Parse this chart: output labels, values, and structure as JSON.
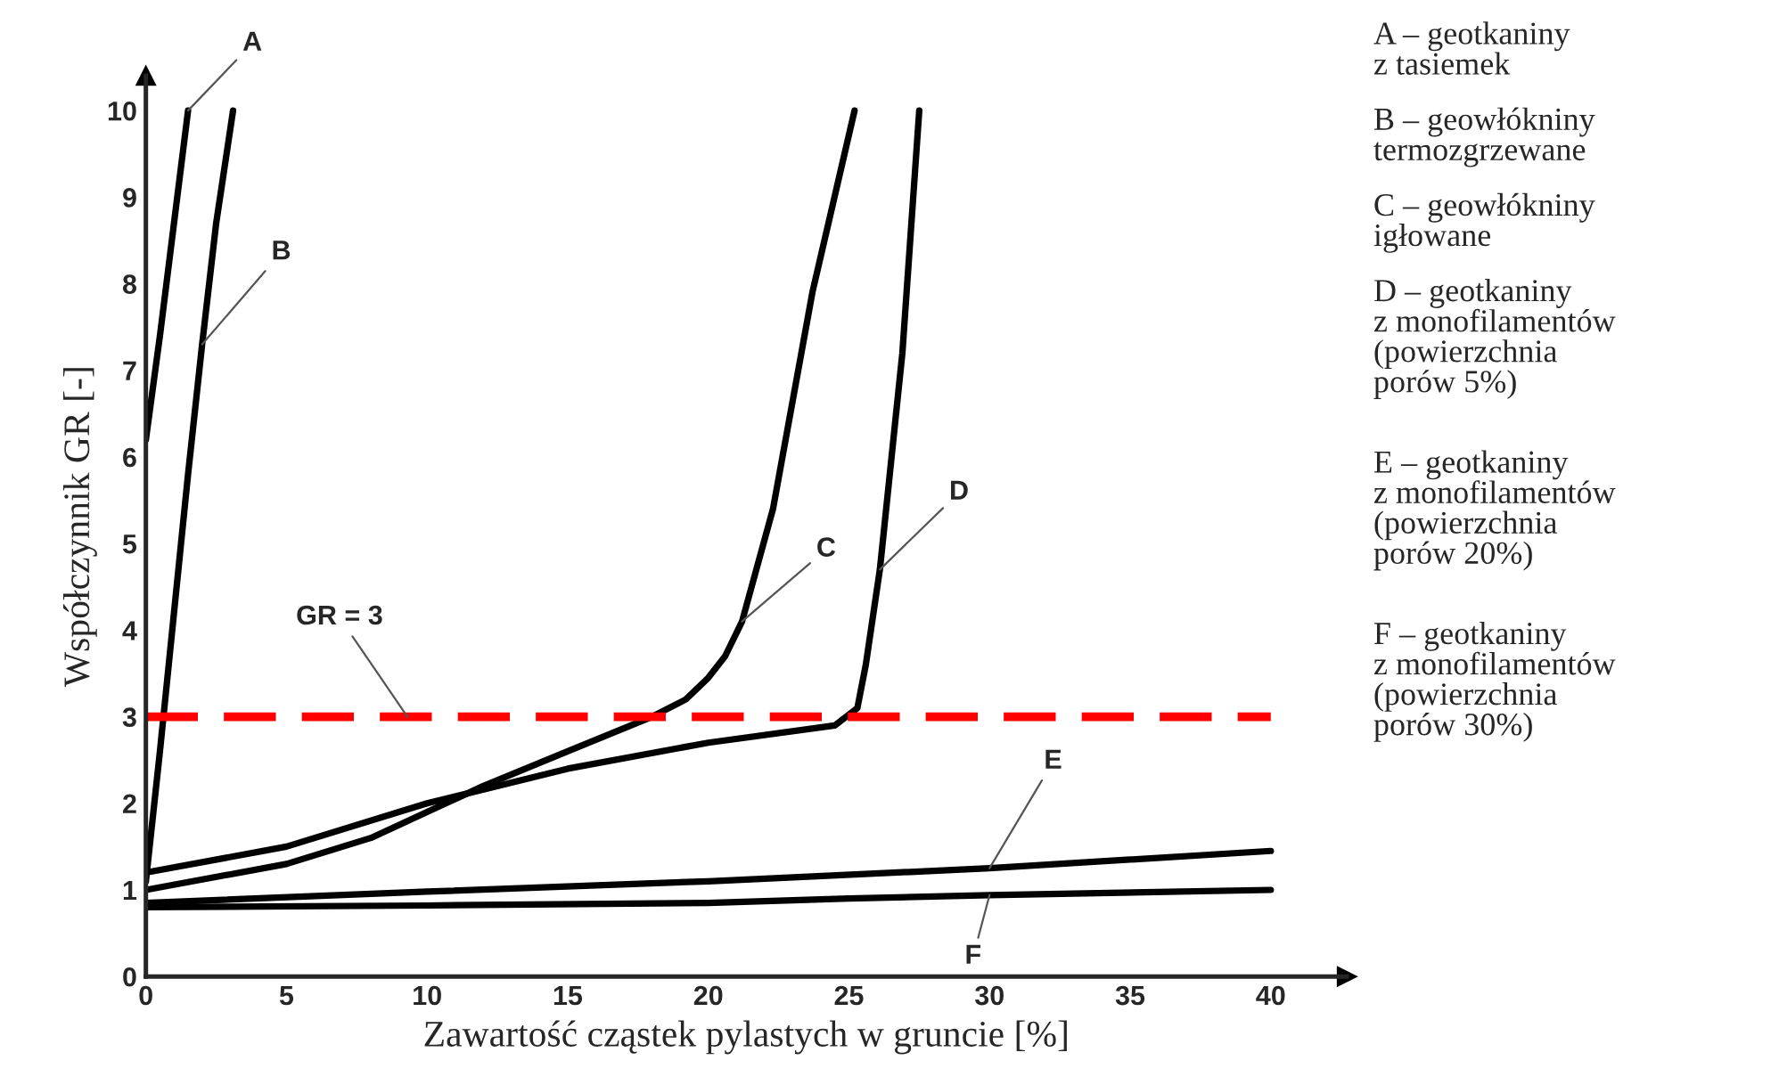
{
  "chart_data": {
    "type": "line",
    "xlabel": "Zawartość cząstek pylastych w gruncie [%]",
    "ylabel": "Współczynnik GR [-]",
    "xlim": [
      0,
      42.7
    ],
    "ylim": [
      0,
      10.4
    ],
    "xticks": [
      0,
      5,
      10,
      15,
      20,
      25,
      30,
      35,
      40
    ],
    "yticks": [
      0,
      1,
      2,
      3,
      4,
      5,
      6,
      7,
      8,
      9,
      10
    ],
    "grid": false,
    "legend": false,
    "marker": "none",
    "line_style": "solid",
    "series": [
      {
        "name": "A",
        "color": "#000000",
        "x": [
          0,
          0.5,
          1.0,
          1.5
        ],
        "values": [
          6.2,
          7.4,
          8.7,
          10
        ]
      },
      {
        "name": "B",
        "color": "#000000",
        "x": [
          0,
          0.5,
          1.0,
          1.5,
          2.0,
          2.5,
          3.1
        ],
        "values": [
          1.1,
          2.6,
          4.2,
          5.8,
          7.3,
          8.7,
          10
        ]
      },
      {
        "name": "C",
        "color": "#000000",
        "x": [
          0,
          5,
          8,
          10,
          12,
          15,
          18,
          19.2,
          20,
          20.6,
          21.2,
          22.3,
          23.7,
          25.2
        ],
        "values": [
          1.0,
          1.3,
          1.6,
          1.9,
          2.2,
          2.6,
          3.0,
          3.2,
          3.45,
          3.7,
          4.1,
          5.4,
          7.9,
          10
        ]
      },
      {
        "name": "D",
        "color": "#000000",
        "x": [
          0,
          5,
          10,
          15,
          20,
          24.5,
          25.3,
          25.6,
          26.1,
          26.9,
          27.5
        ],
        "values": [
          1.2,
          1.5,
          2.0,
          2.4,
          2.7,
          2.9,
          3.1,
          3.6,
          4.7,
          7.2,
          10
        ]
      },
      {
        "name": "E",
        "color": "#000000",
        "x": [
          0,
          10,
          20,
          30,
          40
        ],
        "values": [
          0.85,
          0.98,
          1.1,
          1.25,
          1.45
        ]
      },
      {
        "name": "F",
        "color": "#000000",
        "x": [
          0,
          10,
          20,
          25,
          30,
          40
        ],
        "values": [
          0.8,
          0.82,
          0.85,
          0.9,
          0.94,
          1.0
        ]
      }
    ],
    "ref_lines": [
      {
        "axis": "y",
        "value": 3,
        "label": "GR = 3",
        "color": "#ff0000",
        "line_style": "dashed"
      }
    ],
    "annotations": [
      "A – geotkaniny\nz tasiemek",
      "B – geowłókniny\ntermozgrzewane",
      "C – geowłókniny\nigłowane",
      "D – geotkaniny\nz monofilamentów\n(powierzchnia\nporów 5%)",
      "E – geotkaniny\nz monofilamentów\n(powierzchnia\nporów 20%)",
      "F – geotkaniny\nz monofilamentów\n(powierzchnia\nporów 30%)"
    ]
  }
}
